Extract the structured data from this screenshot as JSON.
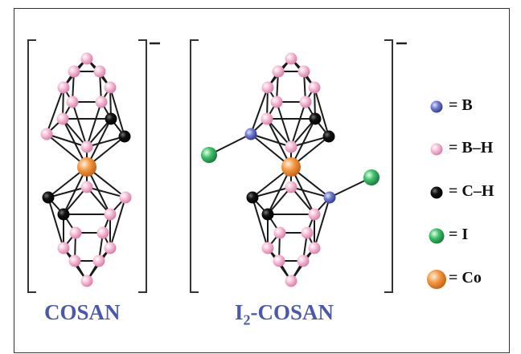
{
  "figure": {
    "molecules": [
      {
        "id": "cosan",
        "label": "COSAN",
        "charge": "−"
      },
      {
        "id": "i2-cosan",
        "label_main": "I",
        "label_sub": "2",
        "label_rest": "-COSAN",
        "charge": "−"
      }
    ],
    "legend": [
      {
        "key": "B",
        "text": "= B",
        "color": "#4a5ab0"
      },
      {
        "key": "B-H",
        "text": "= B–H",
        "color": "#f2a9cc"
      },
      {
        "key": "C-H",
        "text": "= C–H",
        "color": "#111111"
      },
      {
        "key": "I",
        "text": "= I",
        "color": "#2aa85a"
      },
      {
        "key": "Co",
        "text": "= Co",
        "color": "#f08a2c"
      }
    ],
    "colors": {
      "label": "#4a5aa8",
      "bond": "#1a1a1a",
      "bracket": "#333333"
    }
  }
}
